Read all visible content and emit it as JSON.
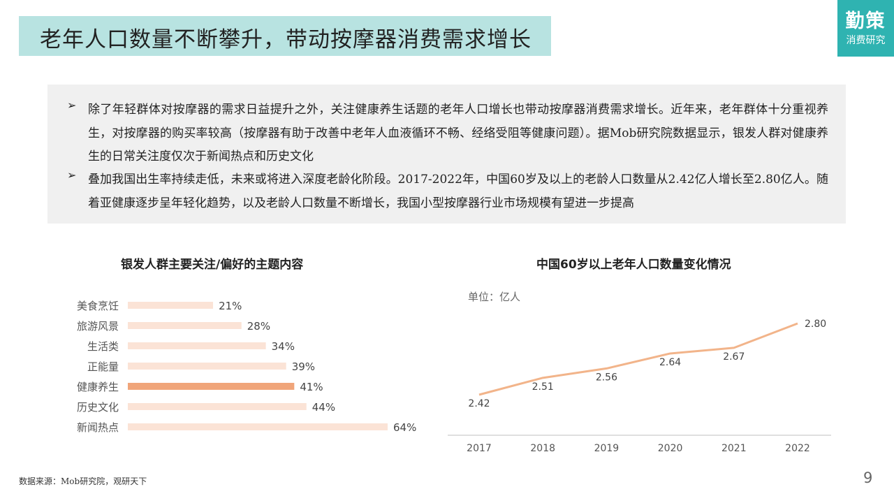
{
  "header": {
    "title": "老年人口数量不断攀升，带动按摩器消费需求增长",
    "logo_main": "勤策",
    "logo_sub": "消费研究"
  },
  "summary": {
    "bullets": [
      "除了年轻群体对按摩器的需求日益提升之外，关注健康养生话题的老年人口增长也带动按摩器消费需求增长。近年来，老年群体十分重视养生，对按摩器的购买率较高（按摩器有助于改善中老年人血液循环不畅、经络受阻等健康问题）。据Mob研究院数据显示，银发人群对健康养生的日常关注度仅次于新闻热点和历史文化",
      "叠加我国出生率持续走低，未来或将进入深度老龄化阶段。2017-2022年，中国60岁及以上的老龄人口数量从2.42亿人增长至2.80亿人。随着亚健康逐步呈年轻化趋势，以及老龄人口数量不断增长，我国小型按摩器行业市场规模有望进一步提高"
    ],
    "bullet_mark": "➢"
  },
  "chart_data": [
    {
      "type": "bar",
      "orientation": "horizontal",
      "title": "银发人群主要关注/偏好的主题内容",
      "categories": [
        "美食烹饪",
        "旅游风景",
        "生活类",
        "正能量",
        "健康养生",
        "历史文化",
        "新闻热点"
      ],
      "values": [
        21,
        28,
        34,
        39,
        41,
        44,
        64
      ],
      "value_labels": [
        "21%",
        "28%",
        "34%",
        "39%",
        "41%",
        "44%",
        "64%"
      ],
      "highlight": "健康养生",
      "colors": {
        "bar": "#fbe3d6",
        "highlight": "#f0a57a"
      },
      "xlim": [
        0,
        64
      ]
    },
    {
      "type": "line",
      "title": "中国60岁以上老年人口数量变化情况",
      "unit_label": "单位：亿人",
      "x": [
        "2017",
        "2018",
        "2019",
        "2020",
        "2021",
        "2022"
      ],
      "values": [
        2.42,
        2.51,
        2.56,
        2.64,
        2.67,
        2.8
      ],
      "value_labels": [
        "2.42",
        "2.51",
        "2.56",
        "2.64",
        "2.67",
        "2.80"
      ],
      "ylim": [
        2.42,
        2.8
      ],
      "colors": {
        "line": "#f2b48a",
        "axis": "#bfbfbf"
      }
    }
  ],
  "footer": {
    "source": "数据来源：Mob研究院，观研天下",
    "page_number": "9"
  }
}
